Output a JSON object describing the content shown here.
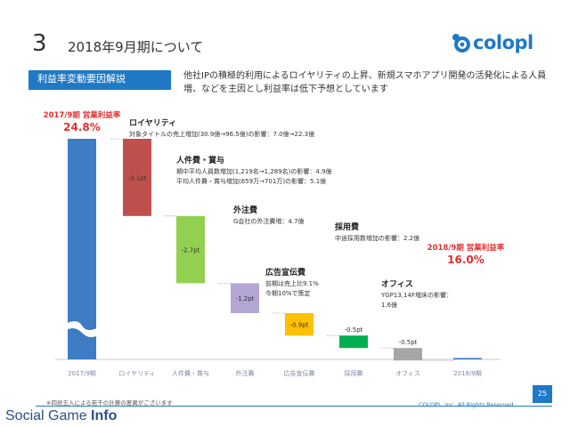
{
  "header": {
    "number": "3",
    "title": "2018年9月期について"
  },
  "logo": {
    "text": "colopl",
    "icon": "colopl-bear-icon"
  },
  "section_label": "利益率変動要因解説",
  "description": "他社IPの積極的利用によるロイヤリティの上昇、新規スマホアプリ開発の活発化による人員増、などを主因とし利益率は低下予想としています",
  "colors": {
    "accent": "#1f79c5",
    "start_end_bar": "#3e7cc4",
    "start_end_title": "#e03030",
    "royalty": "#c0504d",
    "personnel": "#92d050",
    "outsourcing": "#b4a7d6",
    "advertising": "#ffc000",
    "recruiting": "#00b050",
    "office": "#a6a6a6"
  },
  "chart_data": {
    "type": "bar",
    "subtype": "waterfall",
    "unit": "pt",
    "start": {
      "title": "2017/9期 営業利益率",
      "value_label": "24.8%",
      "value": 24.8
    },
    "end": {
      "title": "2018/9期 営業利益率",
      "value_label": "16.0%",
      "value": 16.0
    },
    "categories": [
      "2017/9期",
      "ロイヤリティ",
      "人件費・賞与",
      "外注費",
      "広告宣伝費",
      "採用費",
      "オフィス",
      "2018/9期"
    ],
    "steps": [
      {
        "key": "royalty",
        "value": -3.1,
        "label": "-3.1pt",
        "title": "ロイヤリティ",
        "notes": [
          "対象タイトルの売上増加(30.9億→96.5億)の影響：7.0億→22.3億"
        ]
      },
      {
        "key": "personnel",
        "value": -2.7,
        "label": "-2.7pt",
        "title": "人件費・賞与",
        "notes": [
          "期中平均人員数増加(1,219名→1,289名)の影響：4.9億",
          "平均人件費・賞与増加(659万→701万)の影響：5.1億"
        ]
      },
      {
        "key": "outsourcing",
        "value": -1.2,
        "label": "-1.2pt",
        "title": "外注費",
        "notes": [
          "G会社の外注費増：4.7億"
        ]
      },
      {
        "key": "advertising",
        "value": -0.9,
        "label": "-0.9pt",
        "title": "広告宣伝費",
        "notes": [
          "前期は売上比9.1%",
          "今期10%で策定"
        ]
      },
      {
        "key": "recruiting",
        "value": -0.5,
        "label": "-0.5pt",
        "title": "採用費",
        "notes": [
          "中途採用数増加の影響：2.2億"
        ]
      },
      {
        "key": "office",
        "value": -0.5,
        "label": "-0.5pt",
        "title": "オフィス",
        "notes": [
          "YGP13,14F増床の影響：",
          "1.6億"
        ]
      }
    ]
  },
  "footer": {
    "note": "※四捨五入による若干の計算の差異がございます",
    "copyright": "COLOPL, Inc. All Rights Reserved.",
    "page": "25",
    "watermark_part1": "Social Game ",
    "watermark_part2": "Info"
  }
}
